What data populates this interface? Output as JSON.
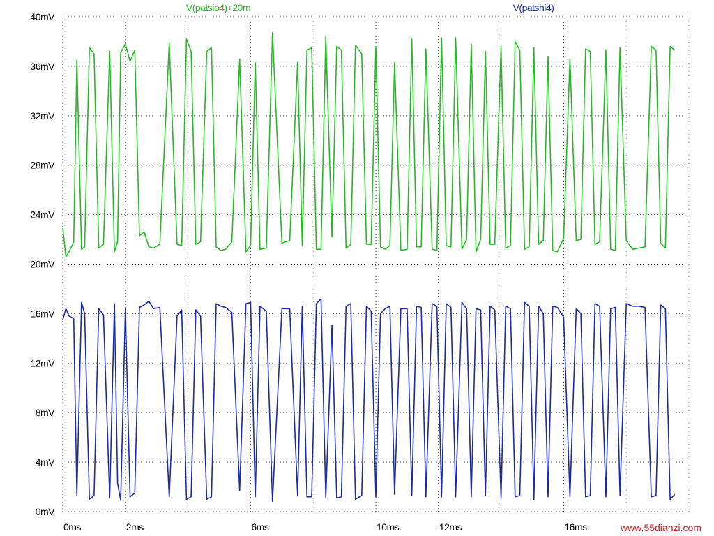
{
  "chart_data": {
    "type": "line",
    "x_unit": "ms",
    "x_ticks": [
      {
        "value": 0,
        "label": "0ms"
      },
      {
        "value": 2,
        "label": "2ms"
      },
      {
        "value": 6,
        "label": "6ms"
      },
      {
        "value": 10,
        "label": "10ms"
      },
      {
        "value": 12,
        "label": "12ms"
      },
      {
        "value": 16,
        "label": "16ms"
      }
    ],
    "y_ticks": [
      {
        "value": 0,
        "label": "0mV"
      },
      {
        "value": 4,
        "label": "4mV"
      },
      {
        "value": 8,
        "label": "8mV"
      },
      {
        "value": 12,
        "label": "12mV"
      },
      {
        "value": 16,
        "label": "16mV"
      },
      {
        "value": 20,
        "label": "20mV"
      },
      {
        "value": 24,
        "label": "24mV"
      },
      {
        "value": 28,
        "label": "28mV"
      },
      {
        "value": 32,
        "label": "32mV"
      },
      {
        "value": 36,
        "label": "36mV"
      },
      {
        "value": 40,
        "label": "40mV"
      }
    ],
    "xlim": [
      0,
      20
    ],
    "ylim": [
      0,
      40
    ],
    "grid": true,
    "legend_position": "top",
    "series": [
      {
        "name": "V(patsio4)+20m",
        "color": "#22bb22",
        "x": [
          0.0,
          0.1,
          0.2,
          0.35,
          0.45,
          0.6,
          0.7,
          0.85,
          1.0,
          1.15,
          1.3,
          1.5,
          1.65,
          1.75,
          1.85,
          2.0,
          2.15,
          2.3,
          2.45,
          2.6,
          2.75,
          2.9,
          3.1,
          3.4,
          3.65,
          3.8,
          3.95,
          4.1,
          4.25,
          4.4,
          4.6,
          4.75,
          4.9,
          5.05,
          5.2,
          5.4,
          5.65,
          5.85,
          6.0,
          6.15,
          6.3,
          6.5,
          6.7,
          7.0,
          7.25,
          7.5,
          7.65,
          7.8,
          7.95,
          8.1,
          8.25,
          8.4,
          8.6,
          8.75,
          8.9,
          9.05,
          9.2,
          9.35,
          9.55,
          9.7,
          9.85,
          10.0,
          10.15,
          10.3,
          10.45,
          10.6,
          10.8,
          11.0,
          11.15,
          11.3,
          11.45,
          11.6,
          11.8,
          11.95,
          12.1,
          12.25,
          12.4,
          12.55,
          12.75,
          12.9,
          13.05,
          13.2,
          13.35,
          13.5,
          13.65,
          13.8,
          14.0,
          14.15,
          14.3,
          14.45,
          14.6,
          14.75,
          14.9,
          15.05,
          15.2,
          15.35,
          15.5,
          15.65,
          15.8,
          16.0,
          16.2,
          16.4,
          16.55,
          16.7,
          16.85,
          17.0,
          17.15,
          17.35,
          17.5,
          17.65,
          17.8,
          18.0,
          18.2,
          18.4,
          18.6,
          18.8,
          18.95,
          19.1,
          19.25,
          19.4,
          19.55
        ],
        "y": [
          22.9,
          20.6,
          21.0,
          21.8,
          36.5,
          21.2,
          21.4,
          37.5,
          37.0,
          21.3,
          21.6,
          37.2,
          21.0,
          21.8,
          37.1,
          37.8,
          36.4,
          37.3,
          22.3,
          22.6,
          21.4,
          21.3,
          21.6,
          37.9,
          21.6,
          21.5,
          38.2,
          37.2,
          21.6,
          21.8,
          37.2,
          37.5,
          21.4,
          21.1,
          21.2,
          21.8,
          36.6,
          21.0,
          21.5,
          36.3,
          21.2,
          21.3,
          38.7,
          21.7,
          21.9,
          36.3,
          21.5,
          37.3,
          37.5,
          21.2,
          21.2,
          38.4,
          22.2,
          37.6,
          37.3,
          21.3,
          21.6,
          37.7,
          37.0,
          21.6,
          21.6,
          37.6,
          21.4,
          21.2,
          21.5,
          36.3,
          21.1,
          21.2,
          38.2,
          21.4,
          21.4,
          37.4,
          21.2,
          21.1,
          38.3,
          21.5,
          21.4,
          38.3,
          21.2,
          22.0,
          37.8,
          21.0,
          22.0,
          37.2,
          21.6,
          21.6,
          37.6,
          21.3,
          21.5,
          38.0,
          37.3,
          21.2,
          21.4,
          37.5,
          21.6,
          21.9,
          36.8,
          21.1,
          21.0,
          22.1,
          36.6,
          21.9,
          22.0,
          37.4,
          37.2,
          21.6,
          21.8,
          37.3,
          21.2,
          21.1,
          37.5,
          21.9,
          21.2,
          21.3,
          21.4,
          37.6,
          37.3,
          21.7,
          21.3,
          37.6,
          37.3
        ],
        "values_note": ""
      },
      {
        "name": "V(patshi4)",
        "color": "#1a2aa8",
        "x": [
          0.0,
          0.1,
          0.2,
          0.35,
          0.45,
          0.6,
          0.7,
          0.85,
          1.0,
          1.15,
          1.3,
          1.5,
          1.65,
          1.75,
          1.85,
          2.0,
          2.15,
          2.3,
          2.45,
          2.6,
          2.75,
          2.9,
          3.1,
          3.4,
          3.65,
          3.8,
          3.95,
          4.1,
          4.25,
          4.4,
          4.6,
          4.75,
          4.9,
          5.05,
          5.2,
          5.4,
          5.65,
          5.85,
          6.0,
          6.15,
          6.3,
          6.5,
          6.7,
          7.0,
          7.25,
          7.5,
          7.65,
          7.8,
          7.95,
          8.1,
          8.25,
          8.4,
          8.6,
          8.75,
          8.9,
          9.05,
          9.2,
          9.35,
          9.55,
          9.7,
          9.85,
          10.0,
          10.15,
          10.3,
          10.45,
          10.6,
          10.8,
          11.0,
          11.15,
          11.3,
          11.45,
          11.6,
          11.8,
          11.95,
          12.1,
          12.25,
          12.4,
          12.55,
          12.75,
          12.9,
          13.05,
          13.2,
          13.35,
          13.5,
          13.65,
          13.8,
          14.0,
          14.15,
          14.3,
          14.45,
          14.6,
          14.75,
          14.9,
          15.05,
          15.2,
          15.35,
          15.5,
          15.65,
          15.8,
          16.0,
          16.2,
          16.4,
          16.55,
          16.7,
          16.85,
          17.0,
          17.15,
          17.35,
          17.5,
          17.65,
          17.8,
          18.0,
          18.2,
          18.4,
          18.6,
          18.8,
          18.95,
          19.1,
          19.25,
          19.4,
          19.55
        ],
        "y": [
          15.5,
          16.4,
          15.8,
          15.6,
          1.3,
          16.9,
          16.0,
          1.0,
          1.3,
          16.4,
          15.9,
          1.1,
          16.8,
          2.3,
          0.9,
          16.4,
          1.2,
          1.5,
          16.5,
          16.7,
          17.0,
          16.4,
          16.5,
          1.2,
          15.8,
          16.3,
          1.0,
          1.2,
          16.3,
          15.8,
          1.0,
          1.2,
          16.8,
          16.6,
          16.5,
          16.1,
          1.7,
          16.8,
          16.9,
          1.2,
          16.6,
          16.2,
          0.8,
          16.4,
          16.4,
          1.3,
          16.6,
          1.2,
          1.2,
          16.8,
          17.2,
          1.1,
          15.1,
          1.1,
          1.2,
          16.6,
          16.8,
          1.0,
          1.3,
          16.6,
          16.2,
          1.2,
          16.0,
          16.4,
          16.6,
          1.4,
          16.4,
          16.4,
          1.3,
          16.6,
          16.5,
          1.2,
          16.8,
          16.6,
          1.2,
          16.8,
          16.5,
          1.2,
          16.9,
          16.4,
          1.2,
          16.4,
          16.3,
          1.3,
          16.6,
          16.3,
          1.1,
          16.6,
          16.4,
          1.2,
          1.3,
          16.9,
          16.6,
          1.0,
          16.6,
          16.0,
          1.2,
          16.6,
          16.5,
          15.7,
          1.2,
          16.4,
          16.0,
          1.2,
          1.3,
          16.8,
          16.6,
          1.2,
          16.4,
          16.5,
          1.3,
          16.8,
          16.6,
          16.6,
          16.5,
          1.2,
          1.3,
          16.7,
          16.4,
          1.0,
          1.4
        ]
      }
    ],
    "title": "",
    "xlabel": "",
    "ylabel": ""
  },
  "watermark": {
    "text": "www.55dianzi.com",
    "color": "#cc2222"
  }
}
